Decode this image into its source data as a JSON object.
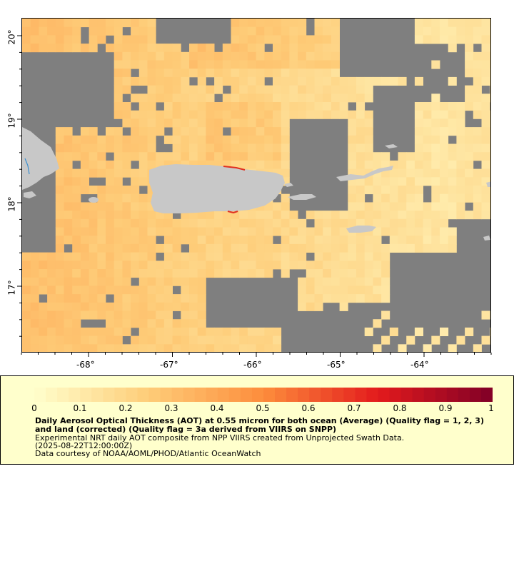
{
  "map": {
    "x_ticks": [
      "-68°",
      "-67°",
      "-66°",
      "-65°",
      "-64°"
    ],
    "y_ticks": [
      "20°",
      "19°",
      "18°",
      "17°"
    ],
    "colors": {
      "land": "#c8c8c8",
      "nodata": "#7f7f7f",
      "water": "#3a8fd0"
    }
  },
  "legend": {
    "scale_labels": [
      "0",
      "0.1",
      "0.2",
      "0.3",
      "0.4",
      "0.5",
      "0.6",
      "0.7",
      "0.8",
      "0.9",
      "1"
    ],
    "title": "Daily Aerosol Optical Thickness (AOT) at 0.55 micron for both ocean (Average) (Quality flag = 1, 2, 3) and land (corrected) (Quality flag = 3a derived from VIIRS on SNPP)",
    "line1": "Experimental NRT daily AOT composite from NPP VIIRS created from Unprojected Swath Data.",
    "line2": "(2025-08-22T12:00:00Z)",
    "line3": "Data courtesy of NOAA/AOML/PHOD/Atlantic OceanWatch"
  }
}
